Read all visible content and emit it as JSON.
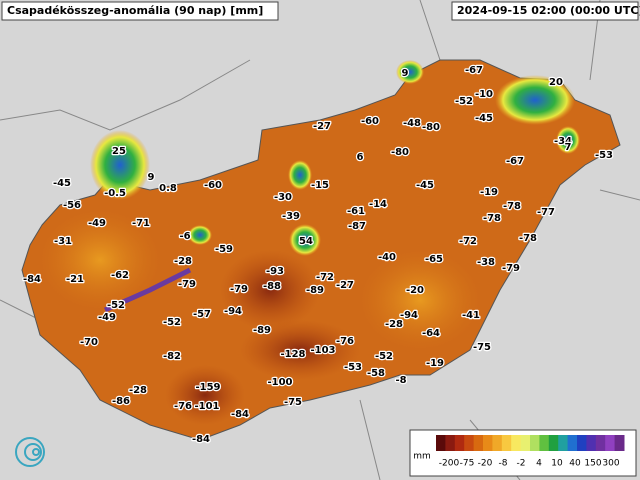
{
  "header": {
    "title": "Csapadékösszeg-anomália (90 nap) [mm]",
    "timestamp": "2024-09-15 02:00 (00:00 UTC)"
  },
  "stations": [
    -67,
    9,
    20,
    -52,
    -10,
    -45,
    -27,
    -60,
    -48,
    -80,
    25,
    -34,
    7,
    -53,
    -67,
    -80,
    6,
    -45,
    -0.5,
    9,
    0.8,
    -60,
    -15,
    -45,
    -19,
    -56,
    -30,
    -39,
    -14,
    -78,
    -77,
    -78,
    -78,
    -49,
    -71,
    -61,
    -87,
    -31,
    -6,
    54,
    -59,
    -72,
    -40,
    -65,
    -38,
    -79,
    -84,
    -21,
    -62,
    -28,
    -93,
    -72,
    -27,
    -79,
    -79,
    -88,
    -89,
    -20,
    -52,
    -49,
    -94,
    -57,
    -52,
    -94,
    -41,
    -28,
    -89,
    -64,
    -70,
    -76,
    -75,
    -128,
    -103,
    -52,
    -82,
    -53,
    -58,
    -19,
    -8,
    -100,
    -159,
    -28,
    -86,
    -75,
    -76,
    -101,
    -84,
    -84
  ],
  "legend": {
    "unit": "mm",
    "labels": [
      "-200",
      "-75",
      "-20",
      "-8",
      "-2",
      "4",
      "10",
      "40",
      "150",
      "300"
    ]
  }
}
